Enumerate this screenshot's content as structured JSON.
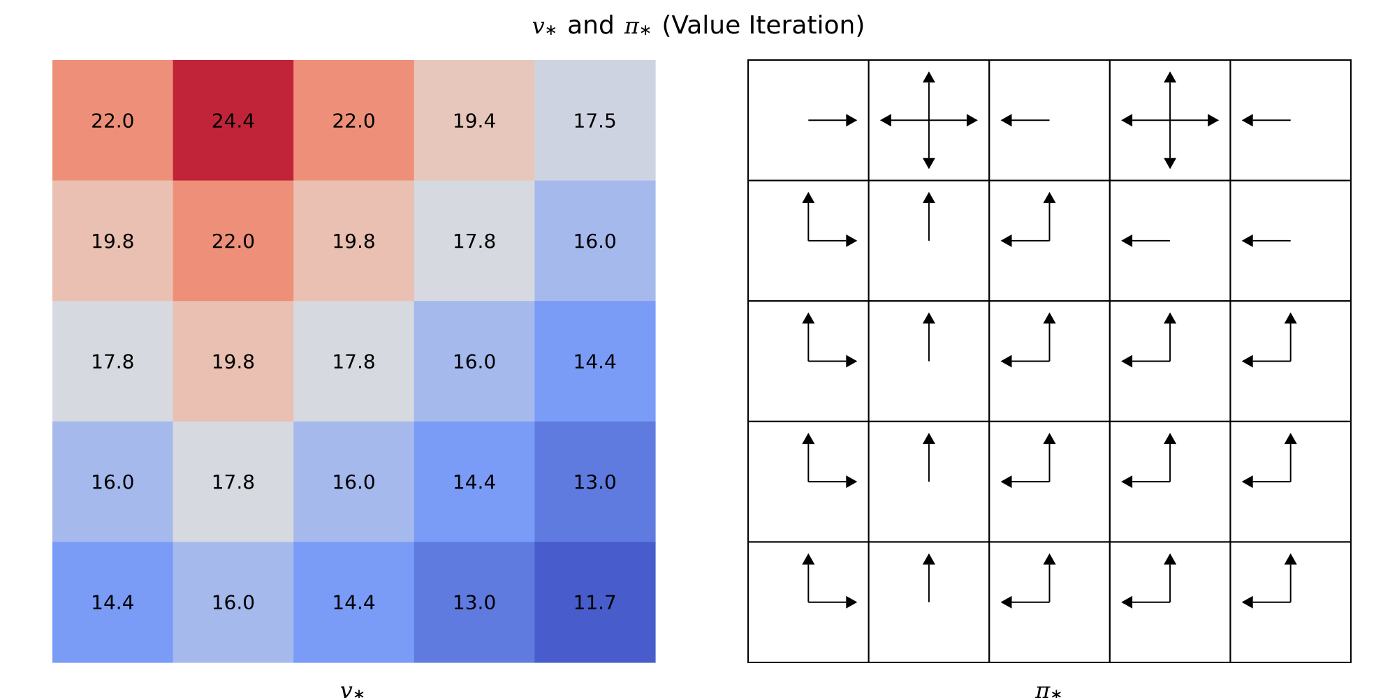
{
  "figure": {
    "title_text": "and",
    "title_tail": "(Value Iteration)",
    "v_symbol": "v",
    "pi_symbol": "π",
    "star": "∗"
  },
  "chart_data": [
    {
      "type": "heatmap",
      "xlabel": "v∗",
      "rows": 5,
      "cols": 5,
      "values": [
        [
          22.0,
          24.4,
          22.0,
          19.4,
          17.5
        ],
        [
          19.8,
          22.0,
          19.8,
          17.8,
          16.0
        ],
        [
          17.8,
          19.8,
          17.8,
          16.0,
          14.4
        ],
        [
          16.0,
          17.8,
          16.0,
          14.4,
          13.0
        ],
        [
          14.4,
          16.0,
          14.4,
          13.0,
          11.7
        ]
      ],
      "labels": [
        [
          "22.0",
          "24.4",
          "22.0",
          "19.4",
          "17.5"
        ],
        [
          "19.8",
          "22.0",
          "19.8",
          "17.8",
          "16.0"
        ],
        [
          "17.8",
          "19.8",
          "17.8",
          "16.0",
          "14.4"
        ],
        [
          "16.0",
          "17.8",
          "16.0",
          "14.4",
          "13.0"
        ],
        [
          "14.4",
          "16.0",
          "14.4",
          "13.0",
          "11.7"
        ]
      ],
      "colormap": "coolwarm",
      "value_range": [
        11.7,
        24.4
      ]
    },
    {
      "type": "policy-grid",
      "xlabel": "π∗",
      "rows": 5,
      "cols": 5,
      "actions": [
        [
          [
            "right"
          ],
          [
            "up",
            "down",
            "left",
            "right"
          ],
          [
            "left"
          ],
          [
            "up",
            "down",
            "left",
            "right"
          ],
          [
            "left"
          ]
        ],
        [
          [
            "up",
            "right"
          ],
          [
            "up"
          ],
          [
            "up",
            "left"
          ],
          [
            "left"
          ],
          [
            "left"
          ]
        ],
        [
          [
            "up",
            "right"
          ],
          [
            "up"
          ],
          [
            "up",
            "left"
          ],
          [
            "up",
            "left"
          ],
          [
            "up",
            "left"
          ]
        ],
        [
          [
            "up",
            "right"
          ],
          [
            "up"
          ],
          [
            "up",
            "left"
          ],
          [
            "up",
            "left"
          ],
          [
            "up",
            "left"
          ]
        ],
        [
          [
            "up",
            "right"
          ],
          [
            "up"
          ],
          [
            "up",
            "left"
          ],
          [
            "up",
            "left"
          ],
          [
            "up",
            "left"
          ]
        ]
      ]
    }
  ]
}
